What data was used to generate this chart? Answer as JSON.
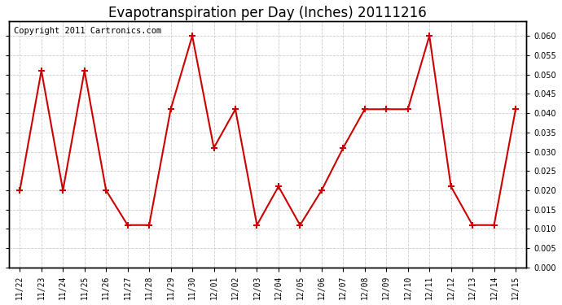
{
  "title": "Evapotranspiration per Day (Inches) 20111216",
  "copyright_text": "Copyright 2011 Cartronics.com",
  "x_labels": [
    "11/22",
    "11/23",
    "11/24",
    "11/25",
    "11/26",
    "11/27",
    "11/28",
    "11/29",
    "11/30",
    "12/01",
    "12/02",
    "12/03",
    "12/04",
    "12/05",
    "12/06",
    "12/07",
    "12/08",
    "12/09",
    "12/10",
    "12/11",
    "12/12",
    "12/13",
    "12/14",
    "12/15"
  ],
  "y_values": [
    0.02,
    0.051,
    0.02,
    0.051,
    0.02,
    0.011,
    0.011,
    0.041,
    0.06,
    0.031,
    0.041,
    0.011,
    0.021,
    0.011,
    0.02,
    0.031,
    0.041,
    0.041,
    0.041,
    0.06,
    0.021,
    0.011,
    0.011,
    0.041
  ],
  "line_color": "#cc0000",
  "marker": "+",
  "marker_size": 6,
  "marker_edge_width": 1.5,
  "line_width": 1.5,
  "ylim": [
    0.0,
    0.0637
  ],
  "yticks": [
    0.0,
    0.005,
    0.01,
    0.015,
    0.02,
    0.025,
    0.03,
    0.035,
    0.04,
    0.045,
    0.05,
    0.055,
    0.06
  ],
  "bg_color": "#ffffff",
  "grid_color": "#cccccc",
  "title_fontsize": 12,
  "copyright_fontsize": 7.5,
  "tick_fontsize": 7,
  "border_color": "#000000"
}
